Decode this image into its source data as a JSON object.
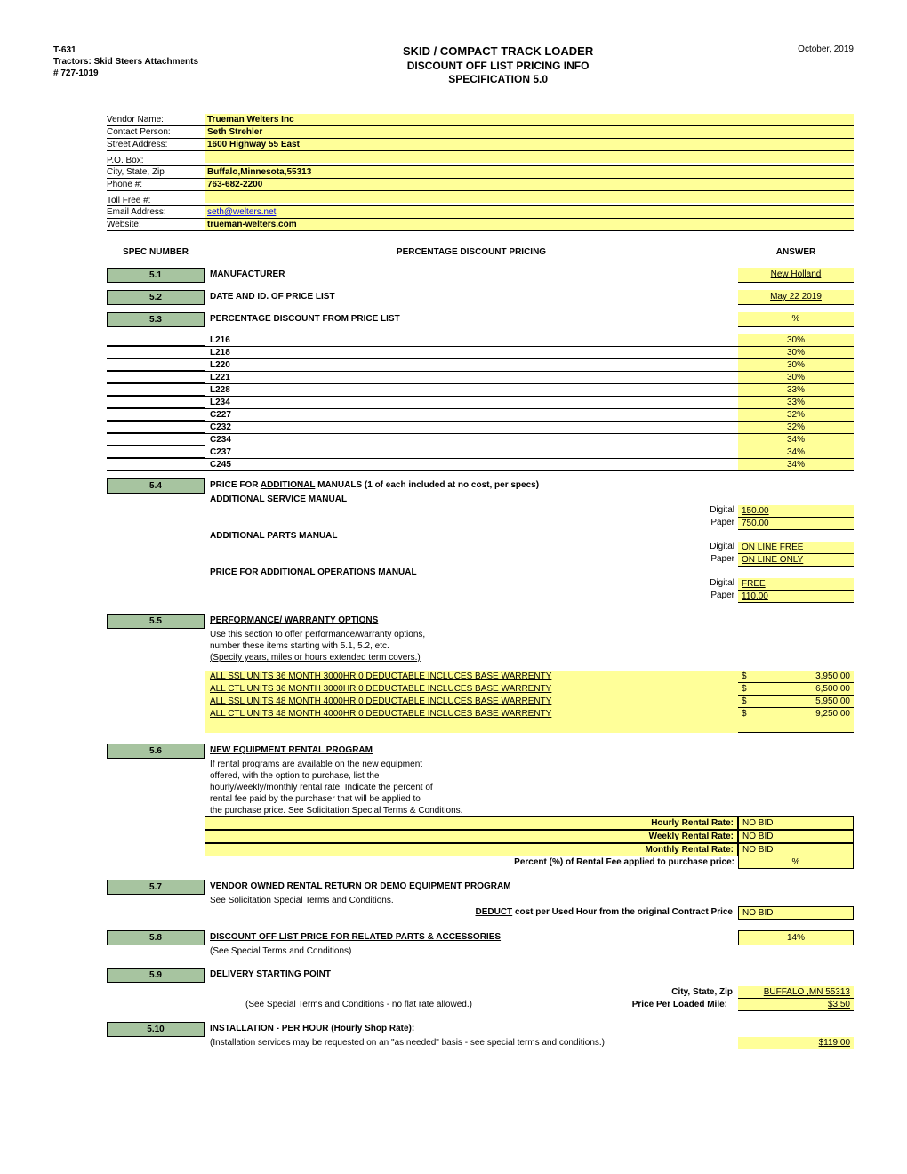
{
  "header": {
    "left_line1": "T-631",
    "left_line2": "Tractors: Skid Steers Attachments",
    "left_line3": "# 727-1019",
    "center_title": "SKID / COMPACT TRACK LOADER",
    "center_sub1": "DISCOUNT OFF LIST PRICING INFO",
    "center_sub2": "SPECIFICATION 5.0",
    "right_date": "October, 2019"
  },
  "vendor": {
    "rows": [
      {
        "label": "Vendor Name:",
        "value": "Trueman Welters Inc",
        "link": false
      },
      {
        "label": "Contact Person:",
        "value": "Seth Strehler",
        "link": false
      },
      {
        "label": "Street Address:",
        "value": "1600 Highway 55 East",
        "link": false
      },
      {
        "label": "P.O. Box:",
        "value": "",
        "link": false
      },
      {
        "label": "City, State, Zip",
        "value": "Buffalo,Minnesota,55313",
        "link": false
      },
      {
        "label": "Phone #:",
        "value": "763-682-2200",
        "link": false
      },
      {
        "label": "Toll Free #:",
        "value": "",
        "link": false
      },
      {
        "label": "Email Address:",
        "value": "seth@welters.net",
        "link": true
      },
      {
        "label": "Website:",
        "value": "trueman-welters.com",
        "link": false
      }
    ]
  },
  "section_headers": {
    "spec": "SPEC NUMBER",
    "desc": "PERCENTAGE DISCOUNT PRICING",
    "ans": "ANSWER"
  },
  "s51": {
    "num": "5.1",
    "desc": "MANUFACTURER",
    "ans": "New Holland"
  },
  "s52": {
    "num": "5.2",
    "desc": "DATE AND ID. OF PRICE LIST",
    "ans": "May 22 2019"
  },
  "s53": {
    "num": "5.3",
    "desc": "PERCENTAGE DISCOUNT FROM PRICE LIST",
    "ans": "%",
    "models": [
      {
        "name": "L216",
        "pct": "30%"
      },
      {
        "name": "L218",
        "pct": "30%"
      },
      {
        "name": "L220",
        "pct": "30%"
      },
      {
        "name": "L221",
        "pct": "30%"
      },
      {
        "name": "L228",
        "pct": "33%"
      },
      {
        "name": "L234",
        "pct": "33%"
      },
      {
        "name": "C227",
        "pct": "32%"
      },
      {
        "name": "C232",
        "pct": "32%"
      },
      {
        "name": "C234",
        "pct": "34%"
      },
      {
        "name": "C237",
        "pct": "34%"
      },
      {
        "name": "C245",
        "pct": "34%"
      }
    ]
  },
  "s54": {
    "num": "5.4",
    "desc_main": "PRICE FOR ",
    "desc_add": "ADDITIONAL",
    "desc_rest": " MANUALS (1 of each included at no cost, per specs)",
    "service_label": "ADDITIONAL SERVICE MANUAL",
    "parts_label": "ADDITIONAL PARTS MANUAL",
    "ops_label": "PRICE FOR ADDITIONAL OPERATIONS MANUAL",
    "digital": "Digital",
    "paper": "Paper",
    "service_digital": "150.00",
    "service_paper": "750.00",
    "parts_digital": "ON LINE FREE",
    "parts_paper": "ON LINE ONLY",
    "ops_digital": "FREE",
    "ops_paper": "110.00"
  },
  "s55": {
    "num": "5.5",
    "title": "PERFORMANCE/ WARRANTY OPTIONS",
    "line1": "Use this section to offer performance/warranty options,",
    "line2": "number these items starting with 5.1, 5.2, etc.",
    "line3": "(Specify years, miles or hours extended term covers.)",
    "items": [
      {
        "desc": "ALL SSL UNITS 36 MONTH 3000HR 0 DEDUCTABLE INCLUCES BASE WARRENTY",
        "price": "3,950.00"
      },
      {
        "desc": "ALL CTL UNITS 36 MONTH 3000HR 0 DEDUCTABLE INCLUCES BASE WARRENTY",
        "price": "6,500.00"
      },
      {
        "desc": "ALL SSL UNITS 48 MONTH 4000HR 0 DEDUCTABLE INCLUCES BASE WARRENTY",
        "price": "5,950.00"
      },
      {
        "desc": "ALL CTL UNITS 48 MONTH 4000HR 0 DEDUCTABLE INCLUCES BASE WARRENTY",
        "price": "9,250.00"
      }
    ]
  },
  "s56": {
    "num": "5.6",
    "title": "NEW EQUIPMENT RENTAL PROGRAM",
    "line1": "If rental programs are available on the new equipment",
    "line2": "offered, with the option to purchase, list the",
    "line3": "hourly/weekly/monthly rental rate.  Indicate the percent of",
    "line4": "rental fee paid by the purchaser that will be applied to",
    "line5": "the purchase price.  See Solicitation Special Terms & Conditions.",
    "hourly_label": "Hourly Rental Rate:",
    "hourly_val": "NO BID",
    "weekly_label": "Weekly Rental Rate:",
    "weekly_val": "NO BID",
    "monthly_label": "Monthly Rental Rate:",
    "monthly_val": "NO BID",
    "pct_label": "Percent (%) of Rental Fee applied to purchase price:",
    "pct_val": "%"
  },
  "s57": {
    "num": "5.7",
    "title": "VENDOR OWNED RENTAL RETURN OR DEMO EQUIPMENT PROGRAM",
    "line1": "See Solicitation Special Terms and Conditions.",
    "deduct_pre": "DEDUCT",
    "deduct_rest": " cost per Used Hour from the original Contract Price",
    "val": "NO BID"
  },
  "s58": {
    "num": "5.8",
    "title": "DISCOUNT OFF LIST PRICE FOR RELATED PARTS  & ACCESSORIES ",
    "line1": " (See Special Terms and Conditions)",
    "val": "14%"
  },
  "s59": {
    "num": "5.9",
    "title": "DELIVERY STARTING POINT",
    "city_label": "City, State, Zip",
    "city_val": " BUFFALO ,MN 55313",
    "note": "(See Special Terms and Conditions - no flat rate allowed.)",
    "mile_label": "Price Per Loaded Mile:",
    "mile_val": "$3.50"
  },
  "s510": {
    "num": "5.10",
    "title": "INSTALLATION - PER HOUR (Hourly Shop Rate):",
    "line1": "(Installation services may be requested on an \"as needed\" basis - see special terms and conditions.)",
    "val": "$119.00"
  }
}
